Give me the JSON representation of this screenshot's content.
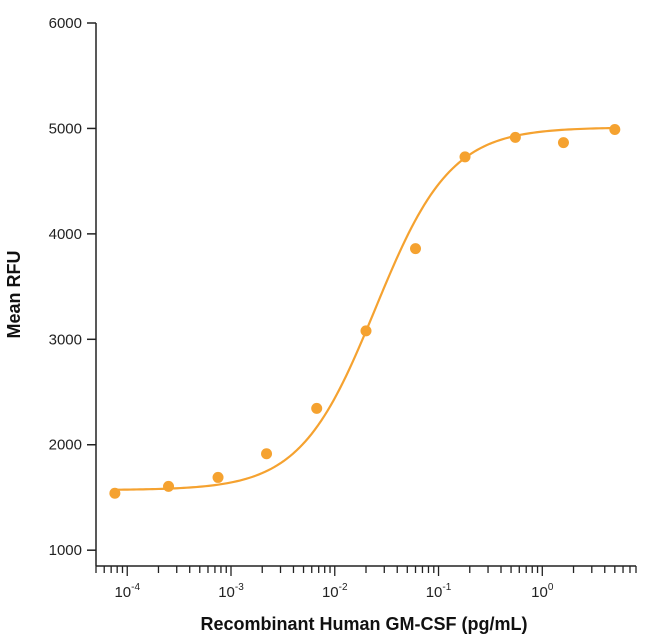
{
  "chart_data": {
    "type": "scatter",
    "title": "",
    "xlabel": "Recombinant Human GM-CSF (pg/mL)",
    "ylabel": "Mean RFU",
    "xscale": "log",
    "xlim": [
      5e-05,
      8
    ],
    "ylim": [
      850,
      6000
    ],
    "yticks": [
      1000,
      2000,
      3000,
      4000,
      5000,
      6000
    ],
    "xticks": [
      {
        "value": 0.0001,
        "base": "10",
        "exp": "-4"
      },
      {
        "value": 0.001,
        "base": "10",
        "exp": "-3"
      },
      {
        "value": 0.01,
        "base": "10",
        "exp": "-2"
      },
      {
        "value": 0.1,
        "base": "10",
        "exp": "-1"
      },
      {
        "value": 1,
        "base": "10",
        "exp": "0"
      }
    ],
    "color": "#F5A230",
    "grid": false,
    "legend": "none",
    "points": {
      "x": [
        7.6e-05,
        0.00025,
        0.00075,
        0.0022,
        0.0067,
        0.02,
        0.06,
        0.18,
        0.55,
        1.6,
        5
      ],
      "y": [
        1540,
        1605,
        1690,
        1915,
        2345,
        3080,
        3860,
        4730,
        4915,
        4865,
        4990
      ]
    },
    "fit": {
      "type": "4PL",
      "bottom": 1570,
      "top": 5010,
      "ec50": 0.0246,
      "hill": 1.2,
      "xrange": [
        7.6e-05,
        5
      ]
    }
  }
}
